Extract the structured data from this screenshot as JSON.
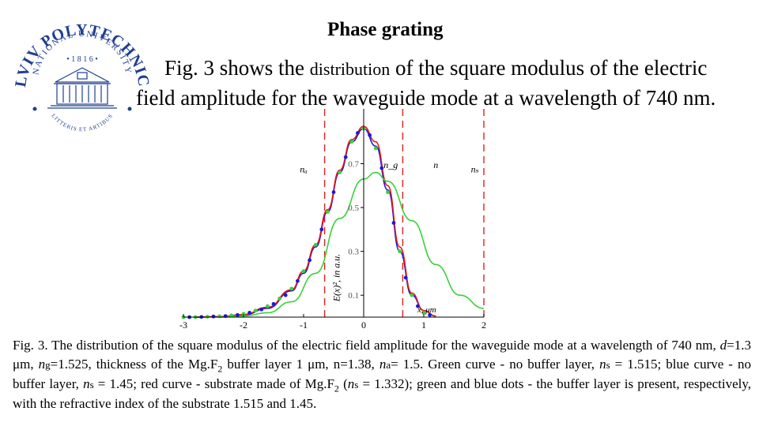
{
  "logo": {
    "arc_top": "NATIONAL UNIVERSITY",
    "arc_main": "LVIV POLYTECHNIC",
    "year": "• 1 8 1 6 •",
    "motto": "LITTERIS ET ARTIBUS",
    "color": "#1f3f8f"
  },
  "slide": {
    "title": "Phase grating",
    "intro_a": "Fig. 3 shows the ",
    "intro_b": "distribution",
    "intro_c": " of the square modulus of the electric",
    "intro_d": "field amplitude for the waveguide mode at a wavelength of 740 nm."
  },
  "chart_data": {
    "type": "line",
    "xlabel": "x, μm",
    "ylabel": "E(x)², in a.u.",
    "xlim": [
      -3,
      2
    ],
    "ylim": [
      0,
      0.95
    ],
    "xticks": [
      -3,
      -2,
      -1,
      0,
      1,
      2
    ],
    "yticks": [
      0.1,
      0.3,
      0.5,
      0.7
    ],
    "boundaries": [
      -0.65,
      0.65,
      2.0
    ],
    "region_labels": [
      {
        "text": "nₐ",
        "x": -1.0,
        "y": 0.66
      },
      {
        "text": "n_g",
        "x": 0.45,
        "y": 0.68
      },
      {
        "text": "n",
        "x": 1.2,
        "y": 0.68
      },
      {
        "text": "nₛ",
        "x": 1.85,
        "y": 0.66
      }
    ],
    "series": [
      {
        "color": "#1b1bd6",
        "style": "line",
        "x": [
          -2.8,
          -2.4,
          -2.0,
          -1.6,
          -1.2,
          -1.0,
          -0.8,
          -0.6,
          -0.4,
          -0.2,
          0.0,
          0.2,
          0.4,
          0.6,
          0.8,
          1.0,
          1.2
        ],
        "y": [
          0.0,
          0.002,
          0.01,
          0.04,
          0.12,
          0.2,
          0.32,
          0.48,
          0.66,
          0.8,
          0.86,
          0.78,
          0.58,
          0.3,
          0.1,
          0.03,
          0.005
        ]
      },
      {
        "color": "#e01818",
        "style": "line",
        "x": [
          -2.8,
          -2.4,
          -2.0,
          -1.6,
          -1.2,
          -1.0,
          -0.8,
          -0.6,
          -0.4,
          -0.2,
          0.0,
          0.2,
          0.4,
          0.6,
          0.8,
          1.0,
          1.2
        ],
        "y": [
          0.0,
          0.002,
          0.012,
          0.045,
          0.125,
          0.21,
          0.33,
          0.49,
          0.67,
          0.81,
          0.87,
          0.8,
          0.6,
          0.32,
          0.11,
          0.03,
          0.005
        ]
      },
      {
        "color": "#3ad13a",
        "style": "line",
        "x": [
          -2.4,
          -2.0,
          -1.6,
          -1.2,
          -0.8,
          -0.4,
          0.0,
          0.2,
          0.4,
          0.8,
          1.2,
          1.6,
          2.0
        ],
        "y": [
          0.0,
          0.005,
          0.02,
          0.07,
          0.2,
          0.45,
          0.63,
          0.66,
          0.62,
          0.44,
          0.24,
          0.1,
          0.04
        ]
      },
      {
        "color": "#3ad13a",
        "style": "dots",
        "x": [
          -3.0,
          -2.8,
          -2.6,
          -2.4,
          -2.2,
          -2.0,
          -1.8,
          -1.6,
          -1.4,
          -1.2,
          -1.0,
          -0.8,
          -0.6,
          -0.4,
          -0.2,
          0.0,
          0.2,
          0.4,
          0.6,
          0.8,
          1.0
        ],
        "y": [
          0.0,
          0.0,
          0.002,
          0.004,
          0.008,
          0.015,
          0.03,
          0.05,
          0.085,
          0.13,
          0.21,
          0.33,
          0.48,
          0.66,
          0.8,
          0.86,
          0.77,
          0.57,
          0.3,
          0.1,
          0.02
        ]
      },
      {
        "color": "#1b1bd6",
        "style": "dots",
        "x": [
          -2.9,
          -2.7,
          -2.5,
          -2.3,
          -2.1,
          -1.9,
          -1.7,
          -1.5,
          -1.3,
          -1.1,
          -0.9,
          -0.7,
          -0.5,
          -0.3,
          -0.1,
          0.1,
          0.3,
          0.5,
          0.7,
          0.9,
          1.1
        ],
        "y": [
          0.0,
          0.001,
          0.003,
          0.005,
          0.01,
          0.02,
          0.035,
          0.06,
          0.1,
          0.165,
          0.26,
          0.4,
          0.57,
          0.73,
          0.84,
          0.83,
          0.68,
          0.43,
          0.18,
          0.05,
          0.01
        ]
      }
    ]
  },
  "caption": {
    "p1": "Fig. 3. The distribution of the square modulus of the electric field amplitude for the waveguide mode at a wavelength of 740 nm, ",
    "d_sym": "d",
    "p2": "=1.3 μm, ",
    "ng_sym": "n",
    "ng_sub": "g",
    "p3": "=1.525, thickness of the Mg.F",
    "sub2a": "2",
    "p4": " buffer layer 1 μm, n=1.38, ",
    "na_sym": "n",
    "na_sub": "a",
    "p5": "= 1.5. Green curve - no buffer layer, ",
    "ns1_sym": "n",
    "ns1_sub": "s",
    "p6": " = 1.515; blue curve - no buffer layer, ",
    "ns2_sym": "n",
    "ns2_sub": "s",
    "p7": " = 1.45; red curve - substrate made of Mg.F",
    "sub2b": "2",
    "p8": " (",
    "ns3_sym": "n",
    "ns3_sub": "s",
    "p9": " = 1.332); green and blue dots - the buffer layer is present, respectively, with the refractive index of the substrate 1.515 and 1.45."
  }
}
